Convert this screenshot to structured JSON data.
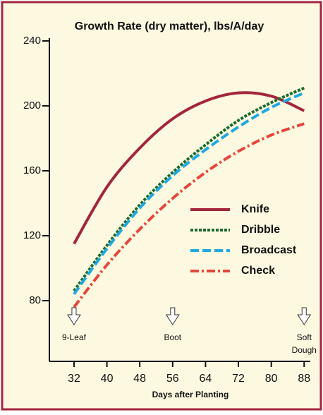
{
  "chart_data": {
    "type": "line",
    "title": "Growth Rate (dry matter), lbs/A/day",
    "x_label": "Days after Planting",
    "x": [
      32,
      40,
      48,
      56,
      64,
      72,
      80,
      88
    ],
    "series": [
      {
        "name": "Knife",
        "color": "#a3263c",
        "dash": "solid",
        "values": [
          115,
          150,
          174,
          192,
          203,
          208,
          206,
          197
        ]
      },
      {
        "name": "Dribble",
        "color": "#1b6b2c",
        "dash": "dotted",
        "values": [
          86,
          114,
          139,
          159,
          176,
          191,
          202,
          211
        ]
      },
      {
        "name": "Broadcast",
        "color": "#22a8e0",
        "dash": "dashed",
        "values": [
          84,
          112,
          137,
          157,
          173,
          187,
          199,
          208
        ]
      },
      {
        "name": "Check",
        "color": "#e5463b",
        "dash": "dashdot",
        "values": [
          76,
          102,
          124,
          143,
          159,
          172,
          182,
          189
        ]
      }
    ],
    "xlim": [
      26,
      89.5
    ],
    "xticks": [
      32,
      40,
      48,
      56,
      64,
      72,
      80,
      88
    ],
    "ylim": [
      42.6,
      240
    ],
    "yticks": [
      80,
      120,
      160,
      200,
      240
    ],
    "legend": "center-right",
    "annotations": [
      {
        "x": 32,
        "lines": [
          "9-Leaf"
        ]
      },
      {
        "x": 56,
        "lines": [
          "Boot"
        ]
      },
      {
        "x": 88,
        "lines": [
          "Soft",
          "Dough"
        ]
      }
    ]
  }
}
